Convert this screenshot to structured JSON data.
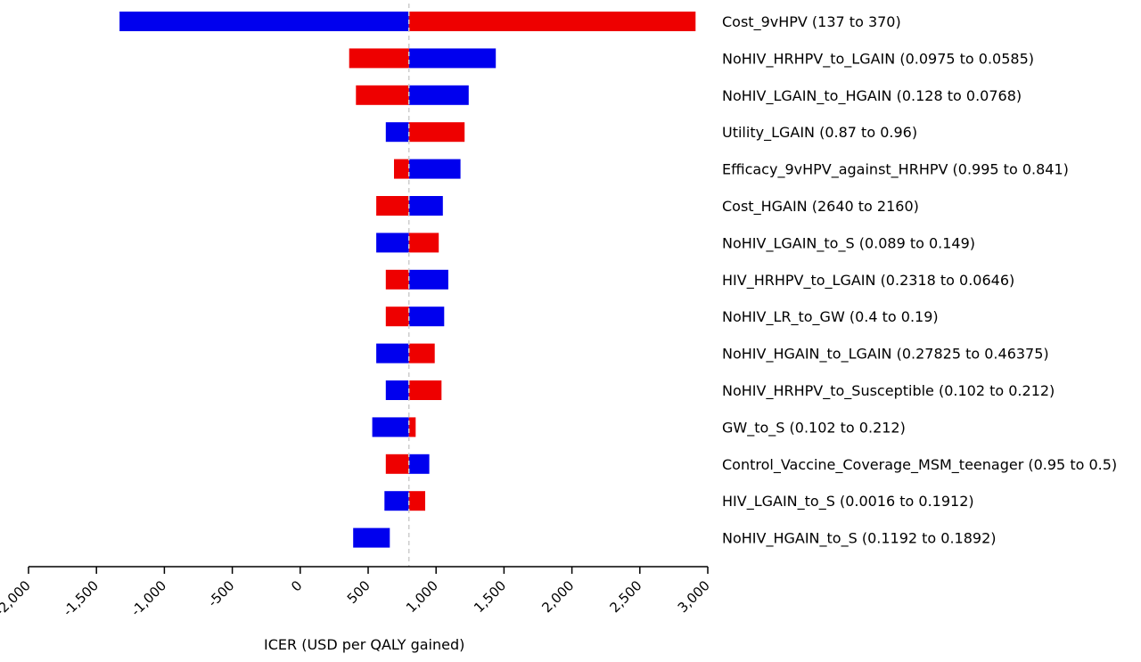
{
  "chart_data": {
    "type": "tornado",
    "xlabel": "ICER (USD per QALY gained)",
    "xlim": [
      -2000,
      3000
    ],
    "xticks": [
      -2000,
      -1500,
      -1000,
      -500,
      0,
      500,
      1000,
      1500,
      2000,
      2500,
      3000
    ],
    "xtick_labels": [
      "-2,000",
      "-1,500",
      "-1,000",
      "-500",
      "0",
      "500",
      "1,000",
      "1,500",
      "2,000",
      "2,500",
      "3,000"
    ],
    "baseline": 800,
    "colors": {
      "low": "#0000ee",
      "high": "#ee0000",
      "baseline_line": "#cccccc"
    },
    "rows": [
      {
        "label": "Cost_9vHPV (137 to 370)",
        "blue": [
          -1330,
          800
        ],
        "red": [
          800,
          2910
        ]
      },
      {
        "label": "NoHIV_HRHPV_to_LGAIN (0.0975 to 0.0585)",
        "blue": [
          800,
          1440
        ],
        "red": [
          360,
          800
        ]
      },
      {
        "label": "NoHIV_LGAIN_to_HGAIN (0.128 to 0.0768)",
        "blue": [
          800,
          1240
        ],
        "red": [
          410,
          800
        ]
      },
      {
        "label": "Utility_LGAIN (0.87 to 0.96)",
        "blue": [
          630,
          800
        ],
        "red": [
          800,
          1210
        ]
      },
      {
        "label": "Efficacy_9vHPV_against_HRHPV (0.995 to 0.841)",
        "blue": [
          800,
          1180
        ],
        "red": [
          690,
          800
        ]
      },
      {
        "label": "Cost_HGAIN (2640 to 2160)",
        "blue": [
          800,
          1050
        ],
        "red": [
          560,
          800
        ]
      },
      {
        "label": "NoHIV_LGAIN_to_S (0.089 to 0.149)",
        "blue": [
          560,
          800
        ],
        "red": [
          800,
          1020
        ]
      },
      {
        "label": "HIV_HRHPV_to_LGAIN (0.2318 to 0.0646)",
        "blue": [
          800,
          1090
        ],
        "red": [
          630,
          800
        ]
      },
      {
        "label": "NoHIV_LR_to_GW (0.4 to 0.19)",
        "blue": [
          800,
          1060
        ],
        "red": [
          630,
          800
        ]
      },
      {
        "label": "NoHIV_HGAIN_to_LGAIN (0.27825 to 0.46375)",
        "blue": [
          560,
          800
        ],
        "red": [
          800,
          990
        ]
      },
      {
        "label": "NoHIV_HRHPV_to_Susceptible (0.102 to 0.212)",
        "blue": [
          630,
          800
        ],
        "red": [
          800,
          1040
        ]
      },
      {
        "label": "GW_to_S (0.102 to 0.212)",
        "blue": [
          530,
          800
        ],
        "red": [
          800,
          850
        ]
      },
      {
        "label": "Control_Vaccine_Coverage_MSM_teenager (0.95 to 0.5)",
        "blue": [
          800,
          950
        ],
        "red": [
          630,
          800
        ]
      },
      {
        "label": "HIV_LGAIN_to_S (0.0016 to 0.1912)",
        "blue": [
          620,
          800
        ],
        "red": [
          800,
          920
        ]
      },
      {
        "label": "NoHIV_HGAIN_to_S (0.1192 to 0.1892)",
        "blue": [
          390,
          660
        ],
        "red": null
      }
    ]
  }
}
